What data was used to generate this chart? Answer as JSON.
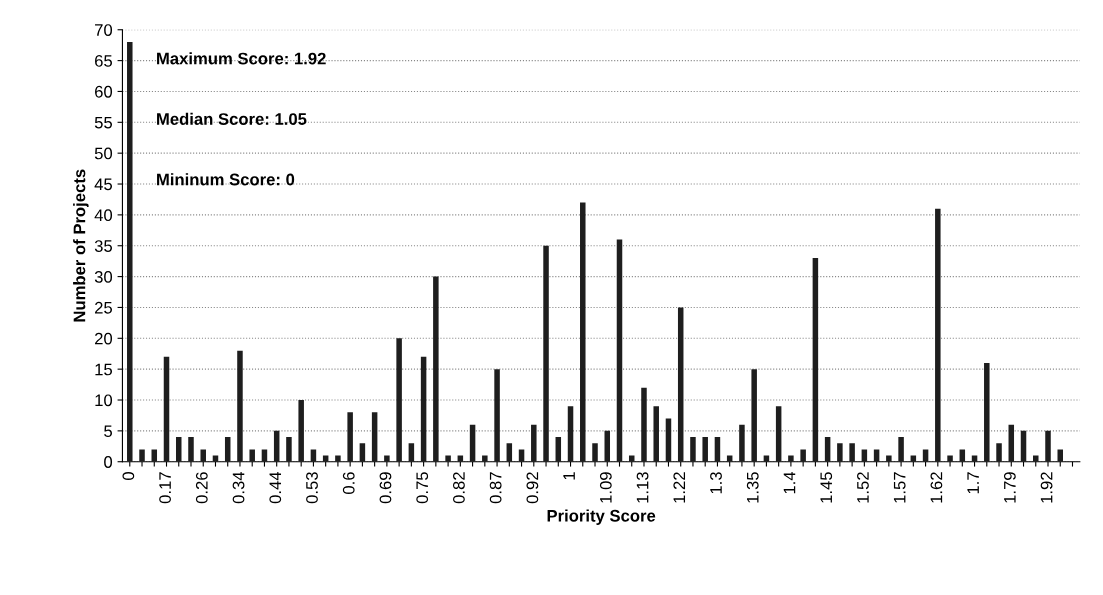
{
  "chart_data": {
    "type": "bar",
    "xlabel": "Priority Score",
    "ylabel": "Number of Projects",
    "categories": [
      "0",
      null,
      null,
      "0.17",
      null,
      null,
      "0.26",
      null,
      null,
      "0.34",
      null,
      null,
      "0.44",
      null,
      null,
      "0.53",
      null,
      null,
      "0.6",
      null,
      null,
      "0.69",
      null,
      null,
      "0.75",
      null,
      null,
      "0.82",
      null,
      null,
      "0.87",
      null,
      null,
      "0.92",
      null,
      null,
      "1",
      null,
      null,
      "1.09",
      null,
      null,
      "1.13",
      null,
      null,
      "1.22",
      null,
      null,
      "1.3",
      null,
      null,
      "1.35",
      null,
      null,
      "1.4",
      null,
      null,
      "1.45",
      null,
      null,
      "1.52",
      null,
      null,
      "1.57",
      null,
      null,
      "1.62",
      null,
      null,
      "1.7",
      null,
      null,
      "1.79",
      null,
      null,
      "1.92",
      null,
      null
    ],
    "values": [
      68,
      2,
      2,
      17,
      4,
      4,
      2,
      1,
      4,
      18,
      2,
      2,
      5,
      4,
      10,
      2,
      1,
      1,
      8,
      3,
      8,
      1,
      20,
      3,
      17,
      30,
      1,
      1,
      6,
      1,
      15,
      3,
      2,
      6,
      35,
      4,
      9,
      42,
      3,
      5,
      36,
      1,
      12,
      9,
      7,
      25,
      4,
      4,
      4,
      1,
      6,
      15,
      1,
      9,
      1,
      2,
      33,
      4,
      3,
      3,
      2,
      2,
      1,
      4,
      1,
      2,
      41,
      1,
      2,
      1,
      16,
      3,
      6,
      5,
      1,
      5,
      2,
      0
    ],
    "color": "#1e1e1e",
    "ylim": [
      0,
      70
    ],
    "yticks": [
      0,
      5,
      10,
      15,
      20,
      25,
      30,
      35,
      40,
      45,
      50,
      55,
      60,
      65,
      70
    ],
    "grid": "y",
    "annotations": [
      "Maximum Score: 1.92",
      "Median Score: 1.05",
      "Mininum Score: 0"
    ]
  }
}
